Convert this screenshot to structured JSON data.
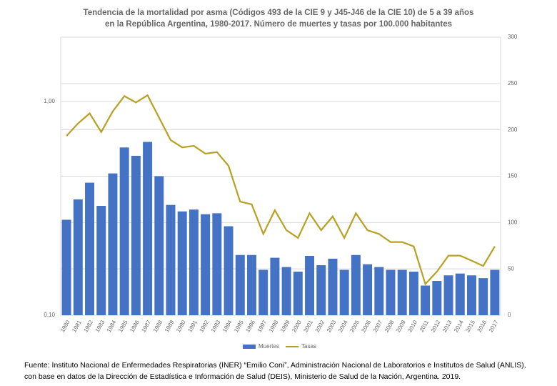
{
  "chart_data": {
    "type": "bar-line",
    "title": "Tendencia de la mortalidad por asma (Códigos 493 de la CIE 9 y J45-J46 de la CIE 10) de 5 a 39 años en la República Argentina, 1980-2017. Número de muertes y tasas por 100.000 habitantes",
    "categories": [
      "1980",
      "1981",
      "1982",
      "1983",
      "1984",
      "1985",
      "1986",
      "1987",
      "1988",
      "1989",
      "1990",
      "1991",
      "1992",
      "1993",
      "1994",
      "1995",
      "1996",
      "1997",
      "1998",
      "1999",
      "2000",
      "2001",
      "2002",
      "2003",
      "2004",
      "2005",
      "2006",
      "2007",
      "2008",
      "2009",
      "2010",
      "2011",
      "2012",
      "2013",
      "2014",
      "2015",
      "2016",
      "2017"
    ],
    "series": [
      {
        "name": "Muertes",
        "type": "bar",
        "axis": "y2",
        "color": "#4472c4",
        "values": [
          103,
          125,
          143,
          118,
          153,
          181,
          172,
          187,
          150,
          119,
          112,
          114,
          109,
          110,
          96,
          65,
          65,
          49,
          62,
          52,
          47,
          64,
          54,
          61,
          49,
          65,
          55,
          52,
          49,
          49,
          47,
          32,
          37,
          43,
          45,
          43,
          40,
          49
        ]
      },
      {
        "name": "Tasas",
        "type": "line",
        "color": "#b8a020",
        "values": [
          0.69,
          0.79,
          0.88,
          0.72,
          0.9,
          1.06,
          0.99,
          1.07,
          0.84,
          0.66,
          0.61,
          0.62,
          0.57,
          0.58,
          0.5,
          0.34,
          0.33,
          0.24,
          0.31,
          0.25,
          0.23,
          0.3,
          0.25,
          0.29,
          0.23,
          0.3,
          0.25,
          0.24,
          0.22,
          0.22,
          0.21,
          0.14,
          0.16,
          0.19,
          0.19,
          0.18,
          0.17,
          0.21
        ]
      }
    ],
    "ylim": [
      0.1,
      2
    ],
    "log_y": true,
    "yticks": [
      {
        "value": 0.1,
        "label": "0,10"
      },
      {
        "value": 1,
        "label": "1,00"
      }
    ],
    "y2lim": [
      0,
      300
    ],
    "y2ticks": [
      0,
      50,
      100,
      150,
      200,
      250,
      300
    ],
    "grid": true,
    "legend": "bottom",
    "source": "Fuente: Instituto Nacional de Enfermedades Respiratorias (INER) “Emilio Coni”, Administración Nacional de Laboratorios e Institutos de Salud (ANLIS), con base en datos de la Dirección de Estadística e Información de Salud (DEIS), Ministerio de Salud de la Nación, Argentina. 2019."
  }
}
